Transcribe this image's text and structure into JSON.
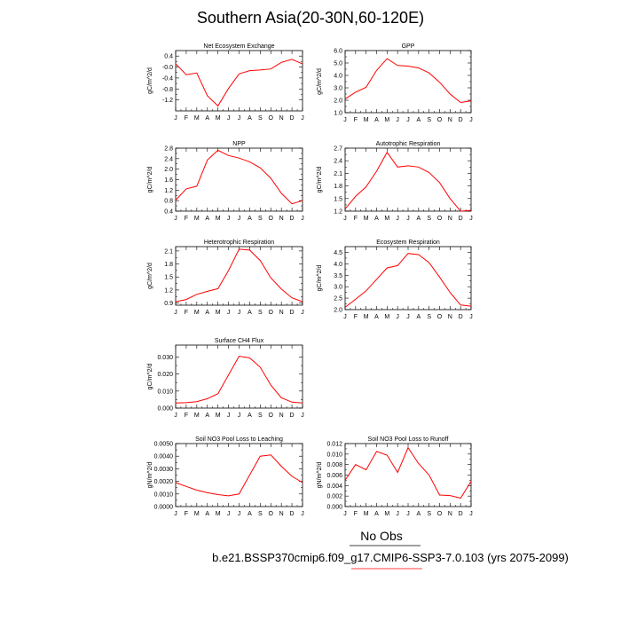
{
  "title": "Southern Asia(20-30N,60-120E)",
  "footer": {
    "obs_label": "No Obs",
    "case_label": "b.e21.BSSP370cmip6.f09_g17.CMIP6-SSP3-7.0.103 (yrs 2075-2099)",
    "obs_line_color": "#000000",
    "case_line_color": "#ff0000"
  },
  "chart_data": [
    {
      "type": "line",
      "title": "Net Ecosystem Exchange",
      "ylabel": "gC/m^2/d",
      "xlabel": "",
      "categories": [
        "J",
        "F",
        "M",
        "A",
        "M",
        "J",
        "J",
        "A",
        "S",
        "O",
        "N",
        "D",
        "J"
      ],
      "series": [
        {
          "values": [
            0.12,
            -0.28,
            -0.22,
            -1.05,
            -1.42,
            -0.78,
            -0.25,
            -0.13,
            -0.11,
            -0.07,
            0.17,
            0.28,
            0.11
          ],
          "color": "#ff0000"
        }
      ],
      "ylim": [
        -1.6,
        0.6
      ],
      "yticks": [
        0.4,
        -0.0,
        -0.4,
        -0.8,
        -1.2
      ],
      "ytick_labels": [
        "0.4",
        "-0.0",
        "-0.4",
        "-0.8",
        "-1.2"
      ],
      "grid": false
    },
    {
      "type": "line",
      "title": "GPP",
      "ylabel": "gC/m^2/d",
      "xlabel": "",
      "categories": [
        "J",
        "F",
        "M",
        "A",
        "M",
        "J",
        "J",
        "A",
        "S",
        "O",
        "N",
        "D",
        "J"
      ],
      "series": [
        {
          "values": [
            2.1,
            2.65,
            3.05,
            4.4,
            5.35,
            4.8,
            4.75,
            4.6,
            4.2,
            3.45,
            2.5,
            1.82,
            1.95
          ],
          "color": "#ff0000"
        }
      ],
      "ylim": [
        1.0,
        6.0
      ],
      "yticks": [
        6.0,
        5.0,
        4.0,
        3.0,
        2.0,
        1.0
      ],
      "ytick_labels": [
        "6.0",
        "5.0",
        "4.0",
        "3.0",
        "2.0",
        "1.0"
      ],
      "grid": false
    },
    {
      "type": "line",
      "title": "NPP",
      "ylabel": "gC/m^2/d",
      "xlabel": "",
      "categories": [
        "J",
        "F",
        "M",
        "A",
        "M",
        "J",
        "J",
        "A",
        "S",
        "O",
        "N",
        "D",
        "J"
      ],
      "series": [
        {
          "values": [
            0.82,
            1.25,
            1.35,
            2.35,
            2.72,
            2.52,
            2.42,
            2.28,
            2.05,
            1.65,
            1.08,
            0.68,
            0.8
          ],
          "color": "#ff0000"
        }
      ],
      "ylim": [
        0.4,
        2.8
      ],
      "yticks": [
        2.8,
        2.4,
        2.0,
        1.6,
        1.2,
        0.8,
        0.4
      ],
      "ytick_labels": [
        "2.8",
        "2.4",
        "2.0",
        "1.6",
        "1.2",
        "0.8",
        "0.4"
      ],
      "grid": false
    },
    {
      "type": "line",
      "title": "Autotrophic Respiration",
      "ylabel": "gC/m^2/d",
      "xlabel": "",
      "categories": [
        "J",
        "F",
        "M",
        "A",
        "M",
        "J",
        "J",
        "A",
        "S",
        "O",
        "N",
        "D",
        "J"
      ],
      "series": [
        {
          "values": [
            1.25,
            1.55,
            1.78,
            2.15,
            2.6,
            2.25,
            2.28,
            2.25,
            2.12,
            1.88,
            1.5,
            1.2,
            1.22
          ],
          "color": "#ff0000"
        }
      ],
      "ylim": [
        1.2,
        2.7
      ],
      "yticks": [
        2.7,
        2.4,
        2.1,
        1.8,
        1.5,
        1.2
      ],
      "ytick_labels": [
        "2.7",
        "2.4",
        "2.1",
        "1.8",
        "1.5",
        "1.2"
      ],
      "grid": false
    },
    {
      "type": "line",
      "title": "Heterotrophic Respiration",
      "ylabel": "gC/m^2/d",
      "xlabel": "",
      "categories": [
        "J",
        "F",
        "M",
        "A",
        "M",
        "J",
        "J",
        "A",
        "S",
        "O",
        "N",
        "D",
        "J"
      ],
      "series": [
        {
          "values": [
            0.93,
            0.98,
            1.1,
            1.17,
            1.23,
            1.65,
            2.14,
            2.12,
            1.88,
            1.48,
            1.22,
            1.02,
            0.93
          ],
          "color": "#ff0000"
        }
      ],
      "ylim": [
        0.85,
        2.2
      ],
      "yticks": [
        2.1,
        1.8,
        1.5,
        1.2,
        0.9
      ],
      "ytick_labels": [
        "2.1",
        "1.8",
        "1.5",
        "1.2",
        "0.9"
      ],
      "grid": false
    },
    {
      "type": "line",
      "title": "Ecosystem Respiration",
      "ylabel": "gC/m^2/d",
      "xlabel": "",
      "categories": [
        "J",
        "F",
        "M",
        "A",
        "M",
        "J",
        "J",
        "A",
        "S",
        "O",
        "N",
        "D",
        "J"
      ],
      "series": [
        {
          "values": [
            2.1,
            2.45,
            2.82,
            3.32,
            3.82,
            3.92,
            4.45,
            4.4,
            4.05,
            3.42,
            2.75,
            2.2,
            2.15
          ],
          "color": "#ff0000"
        }
      ],
      "ylim": [
        2.0,
        4.75
      ],
      "yticks": [
        4.5,
        4.0,
        3.5,
        3.0,
        2.5,
        2.0
      ],
      "ytick_labels": [
        "4.5",
        "4.0",
        "3.5",
        "3.0",
        "2.5",
        "2.0"
      ],
      "grid": false
    },
    {
      "type": "line",
      "title": "Surface CH4 Flux",
      "ylabel": "gC/m^2/d",
      "xlabel": "",
      "categories": [
        "J",
        "F",
        "M",
        "A",
        "M",
        "J",
        "J",
        "A",
        "S",
        "O",
        "N",
        "D",
        "J"
      ],
      "series": [
        {
          "values": [
            0.003,
            0.0032,
            0.0038,
            0.0055,
            0.0085,
            0.0195,
            0.0305,
            0.0295,
            0.024,
            0.0135,
            0.006,
            0.0035,
            0.003
          ],
          "color": "#ff0000"
        }
      ],
      "ylim": [
        0.0,
        0.037
      ],
      "yticks": [
        0.03,
        0.02,
        0.01,
        0.0
      ],
      "ytick_labels": [
        "0.030",
        "0.020",
        "0.010",
        "0.000"
      ],
      "grid": false
    },
    {
      "type": "line",
      "title": "Soil NO3 Pool Loss to Leaching",
      "ylabel": "gN/m^2/d",
      "xlabel": "",
      "categories": [
        "J",
        "F",
        "M",
        "A",
        "M",
        "J",
        "J",
        "A",
        "S",
        "O",
        "N",
        "D",
        "J"
      ],
      "series": [
        {
          "values": [
            0.0019,
            0.0016,
            0.0013,
            0.0011,
            0.00095,
            0.00085,
            0.001,
            0.0025,
            0.004,
            0.0041,
            0.0032,
            0.0024,
            0.0019
          ],
          "color": "#ff0000"
        }
      ],
      "ylim": [
        0.0,
        0.005
      ],
      "yticks": [
        0.005,
        0.004,
        0.003,
        0.002,
        0.001,
        0.0
      ],
      "ytick_labels": [
        "0.0050",
        "0.0040",
        "0.0030",
        "0.0020",
        "0.0010",
        "0.0000"
      ],
      "grid": false
    },
    {
      "type": "line",
      "title": "Soil NO3 Pool Loss to Runoff",
      "ylabel": "gN/m^2/d",
      "xlabel": "",
      "categories": [
        "J",
        "F",
        "M",
        "A",
        "M",
        "J",
        "J",
        "A",
        "S",
        "O",
        "N",
        "D",
        "J"
      ],
      "series": [
        {
          "values": [
            0.005,
            0.008,
            0.007,
            0.0105,
            0.0098,
            0.0065,
            0.0112,
            0.0082,
            0.006,
            0.0022,
            0.0021,
            0.0016,
            0.0048
          ],
          "color": "#ff0000"
        }
      ],
      "ylim": [
        0.0,
        0.012
      ],
      "yticks": [
        0.012,
        0.01,
        0.008,
        0.006,
        0.004,
        0.002,
        0.0
      ],
      "ytick_labels": [
        "0.012",
        "0.010",
        "0.008",
        "0.006",
        "0.004",
        "0.002",
        "0.000"
      ],
      "grid": false
    }
  ]
}
